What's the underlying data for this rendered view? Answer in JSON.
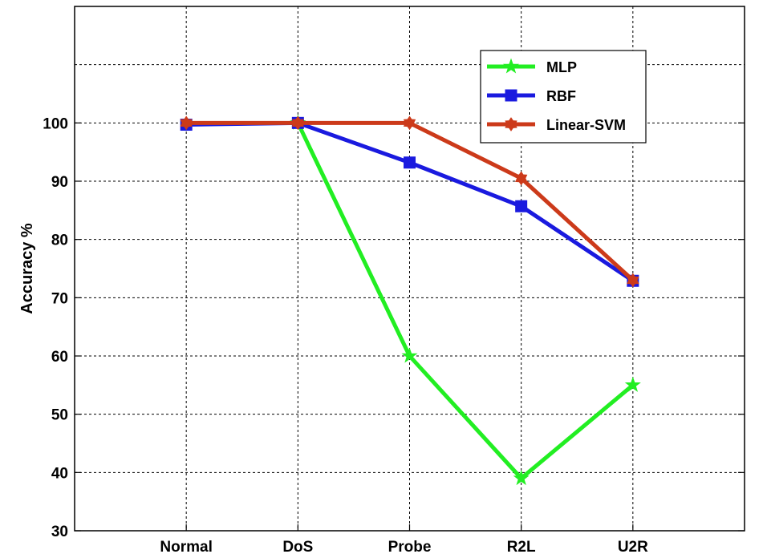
{
  "chart_data": {
    "type": "line",
    "title": "",
    "xlabel": "",
    "ylabel": "Accuracy %",
    "categories": [
      "Normal",
      "DoS",
      "Probe",
      "R2L",
      "U2R"
    ],
    "x_range": [
      0,
      6
    ],
    "ylim": [
      30,
      120
    ],
    "yticks": [
      30,
      40,
      50,
      60,
      70,
      80,
      90,
      100
    ],
    "grid": true,
    "legend_position": "top-right",
    "series": [
      {
        "name": "MLP",
        "color": "#22ee22",
        "marker": "star",
        "points": [
          [
            2,
            100
          ],
          [
            3,
            60
          ],
          [
            4,
            39
          ],
          [
            5,
            55
          ]
        ]
      },
      {
        "name": "RBF",
        "color": "#1a1adf",
        "marker": "square",
        "points": [
          [
            1,
            99.7
          ],
          [
            2,
            100
          ],
          [
            3,
            93.2
          ],
          [
            4,
            85.7
          ],
          [
            5,
            72.9
          ]
        ]
      },
      {
        "name": "Linear-SVM",
        "color": "#cc3a1a",
        "marker": "hexagram",
        "points": [
          [
            1,
            100
          ],
          [
            2,
            100
          ],
          [
            3,
            100
          ],
          [
            4,
            90.5
          ],
          [
            5,
            73
          ]
        ]
      }
    ]
  }
}
